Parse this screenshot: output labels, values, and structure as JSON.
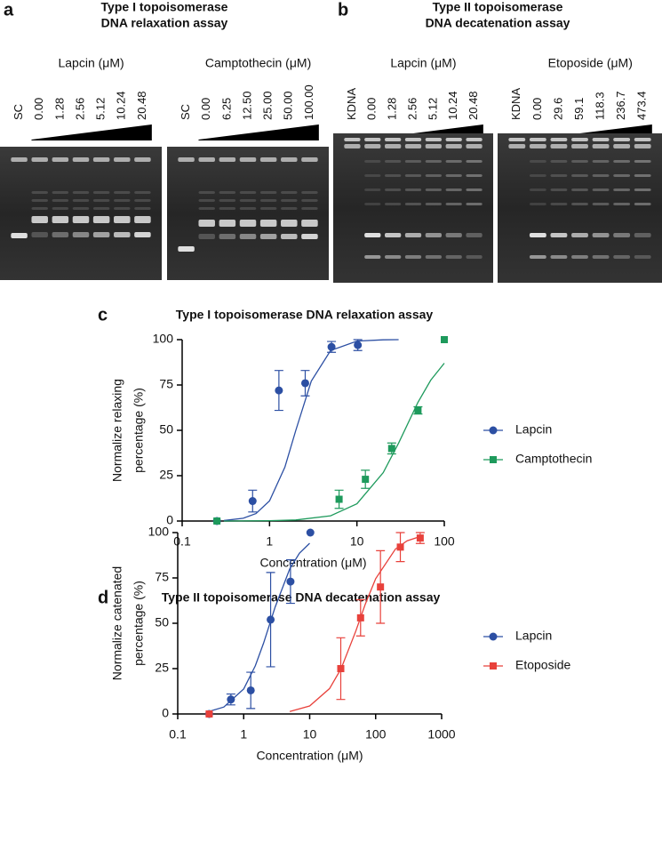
{
  "panels": [
    {
      "label": "a",
      "title": [
        "Type I topoisomerase",
        "DNA relaxation assay"
      ],
      "gels": [
        {
          "group": "Lapcin (μM)",
          "lanes": [
            "SC",
            "0.00",
            "1.28",
            "2.56",
            "5.12",
            "10.24",
            "20.48"
          ]
        },
        {
          "group": "Camptothecin (μM)",
          "lanes": [
            "SC",
            "0.00",
            "6.25",
            "12.50",
            "25.00",
            "50.00",
            "100.00"
          ]
        }
      ]
    },
    {
      "label": "b",
      "title": [
        "Type II topoisomerase",
        "DNA decatenation assay"
      ],
      "gels": [
        {
          "group": "Lapcin (μM)",
          "lanes": [
            "KDNA",
            "0.00",
            "1.28",
            "2.56",
            "5.12",
            "10.24",
            "20.48"
          ]
        },
        {
          "group": "Etoposide (μM)",
          "lanes": [
            "KDNA",
            "0.00",
            "29.6",
            "59.1",
            "118.3",
            "236.7",
            "473.4"
          ]
        }
      ]
    }
  ],
  "chart_data": [
    {
      "type": "scatter",
      "panel_label": "c",
      "title": "Type I topoisomerase DNA relaxation assay",
      "x_label": "Concentration (μM)",
      "y_label": [
        "Normalize relaxing",
        "percentage (%)"
      ],
      "xscale": "log",
      "xlim": [
        0.1,
        100
      ],
      "xticks": [
        0.1,
        1,
        10,
        100
      ],
      "ylim": [
        0,
        100
      ],
      "yticks": [
        0,
        25,
        50,
        75,
        100
      ],
      "legend": "right",
      "series": [
        {
          "name": "Lapcin",
          "color": "#2c4fa3",
          "marker": "circle",
          "x": [
            0.25,
            0.64,
            1.28,
            2.56,
            5.12,
            10.24
          ],
          "values": [
            0,
            11,
            72,
            76,
            96,
            97
          ],
          "errors": [
            null,
            6,
            11,
            7,
            3,
            3
          ],
          "fit_x": [
            0.3,
            0.5,
            0.7,
            1,
            1.5,
            2,
            3,
            5,
            10,
            20,
            30
          ],
          "fit": [
            0.3,
            1.5,
            4.1,
            11.1,
            29.7,
            50,
            77.1,
            94,
            99.2,
            99.9,
            100
          ]
        },
        {
          "name": "Camptothecin",
          "color": "#1e9a5c",
          "marker": "square",
          "x": [
            0.25,
            6.25,
            12.5,
            25,
            50,
            100
          ],
          "values": [
            0,
            12,
            23,
            40,
            61,
            100
          ],
          "errors": [
            null,
            5,
            5,
            3,
            2,
            null
          ],
          "fit_x": [
            0.3,
            1,
            2,
            5,
            10,
            20,
            30,
            50,
            70,
            100
          ],
          "fit": [
            0,
            0.2,
            0.6,
            2.9,
            9.5,
            26.7,
            43,
            65.5,
            77.7,
            87
          ]
        }
      ]
    },
    {
      "type": "scatter",
      "panel_label": "d",
      "title": "Type II topoisomerase DNA decatenation assay",
      "x_label": "Concentration (μM)",
      "y_label": [
        "Normalize catenated",
        "percentage (%)"
      ],
      "xscale": "log",
      "xlim": [
        0.1,
        1000
      ],
      "xticks": [
        0.1,
        1,
        10,
        100,
        1000
      ],
      "ylim": [
        0,
        100
      ],
      "yticks": [
        0,
        25,
        50,
        75,
        100
      ],
      "legend": "right",
      "series": [
        {
          "name": "Lapcin",
          "color": "#2c4fa3",
          "marker": "circle",
          "x": [
            0.3,
            0.64,
            1.28,
            2.56,
            5.12,
            10.24
          ],
          "values": [
            0,
            8,
            13,
            52,
            73,
            100
          ],
          "errors": [
            null,
            3,
            10,
            26,
            12,
            null
          ],
          "fit_x": [
            0.3,
            0.5,
            1,
            1.5,
            2,
            3,
            5,
            7,
            10
          ],
          "fit": [
            1.4,
            3.8,
            13.8,
            26.5,
            39,
            59,
            80,
            88.7,
            94.1
          ]
        },
        {
          "name": "Etoposide",
          "color": "#e8413b",
          "marker": "square",
          "x": [
            0.3,
            29.6,
            59.1,
            118.3,
            236.7,
            473.4
          ],
          "values": [
            0,
            25,
            53,
            70,
            92,
            97
          ],
          "errors": [
            null,
            17,
            10,
            20,
            8,
            3
          ],
          "fit_x": [
            5,
            10,
            20,
            30,
            50,
            70,
            100,
            200,
            300,
            500
          ],
          "fit": [
            1.3,
            4.4,
            14,
            25,
            45.7,
            60.7,
            74.6,
            91,
            95.5,
            98.1
          ]
        }
      ]
    }
  ]
}
